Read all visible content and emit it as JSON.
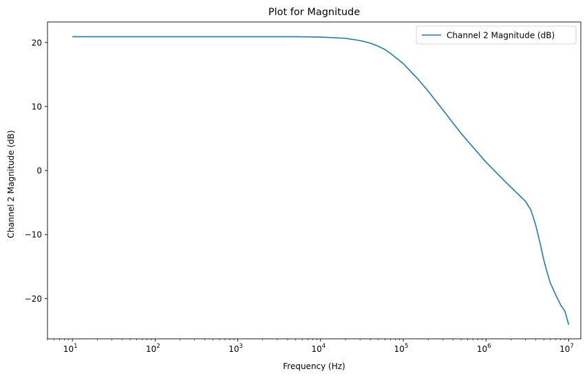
{
  "chart_data": {
    "type": "line",
    "title": "Plot for Magnitude",
    "xlabel": "Frequency (Hz)",
    "ylabel": "Channel 2 Magnitude (dB)",
    "xscale": "log",
    "xlim": [
      5,
      14000000
    ],
    "ylim": [
      -26.3,
      23.2
    ],
    "xticks": [
      {
        "value": 10,
        "base": "10",
        "exp": "1"
      },
      {
        "value": 100,
        "base": "10",
        "exp": "2"
      },
      {
        "value": 1000,
        "base": "10",
        "exp": "3"
      },
      {
        "value": 10000,
        "base": "10",
        "exp": "4"
      },
      {
        "value": 100000,
        "base": "10",
        "exp": "5"
      },
      {
        "value": 1000000,
        "base": "10",
        "exp": "6"
      },
      {
        "value": 10000000,
        "base": "10",
        "exp": "7"
      }
    ],
    "yticks": [
      {
        "value": 20,
        "label": "20"
      },
      {
        "value": 10,
        "label": "10"
      },
      {
        "value": 0,
        "label": "0"
      },
      {
        "value": -10,
        "label": "−10"
      },
      {
        "value": -20,
        "label": "−20"
      }
    ],
    "grid": false,
    "legend_position": "top-right",
    "series": [
      {
        "name": "Channel 2 Magnitude (dB)",
        "color": "#1f77b4",
        "x": [
          10,
          100,
          1000,
          5000,
          10000,
          20000,
          30000,
          40000,
          50000,
          60000,
          70000,
          80000,
          100000,
          150000,
          200000,
          300000,
          400000,
          500000,
          700000,
          1000000,
          1500000,
          2000000,
          3000000,
          3500000,
          4000000,
          4500000,
          5000000,
          5500000,
          6000000,
          7000000,
          8000000,
          9000000,
          10000000
        ],
        "y": [
          20.9,
          20.9,
          20.9,
          20.9,
          20.85,
          20.65,
          20.3,
          19.9,
          19.4,
          18.9,
          18.3,
          17.7,
          16.7,
          14.3,
          12.4,
          9.5,
          7.4,
          5.8,
          3.6,
          1.3,
          -1.0,
          -2.6,
          -4.8,
          -6.2,
          -8.6,
          -11.3,
          -14.0,
          -16.0,
          -17.6,
          -19.5,
          -21.0,
          -22.0,
          -24.1
        ]
      }
    ]
  }
}
